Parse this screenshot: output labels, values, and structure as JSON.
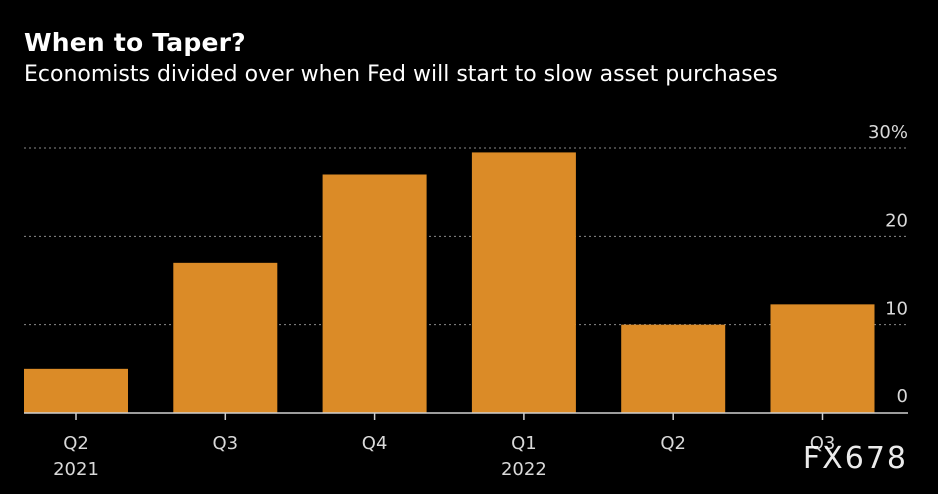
{
  "header": {
    "title": "When to Taper?",
    "subtitle": "Economists divided over when Fed will start to slow asset purchases"
  },
  "watermark": "FX678",
  "colors": {
    "background": "#000000",
    "bar": "#db8b27",
    "gridline": "#8a8a8a",
    "axis": "#cfcfcf",
    "text": "#d9d9d9"
  },
  "chart_data": {
    "type": "bar",
    "title": "When to Taper?",
    "subtitle": "Economists divided over when Fed will start to slow asset purchases",
    "categories": [
      "Q2",
      "Q3",
      "Q4",
      "Q1",
      "Q2",
      "Q3"
    ],
    "year_labels": [
      "2021",
      "",
      "",
      "2022",
      "",
      ""
    ],
    "values": [
      5,
      17,
      27,
      29.5,
      10,
      12.3
    ],
    "ylim": [
      0,
      30
    ],
    "yticks": [
      0,
      10,
      20,
      30
    ],
    "ytick_labels": [
      "0",
      "10",
      "20",
      "30%"
    ],
    "xlabel": "",
    "ylabel": "",
    "grid": true,
    "gridline_style": "dotted"
  }
}
